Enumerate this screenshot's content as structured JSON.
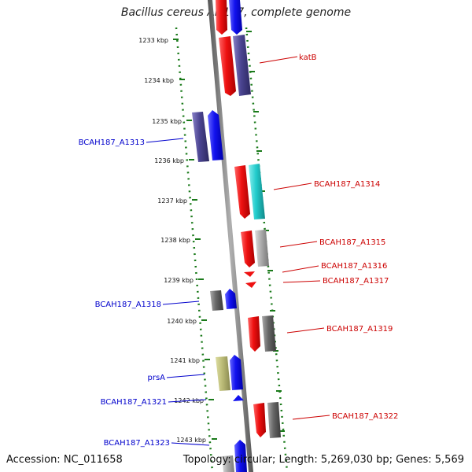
{
  "title": "Bacillus cereus AH187, complete genome",
  "footer": {
    "accession": "Accession: NC_011658",
    "summary": "Topology: circular; Length: 5,269,030 bp; Genes: 5,569"
  },
  "ticks": [
    "1233 kbp",
    "1234 kbp",
    "1235 kbp",
    "1236 kbp",
    "1237 kbp",
    "1238 kbp",
    "1239 kbp",
    "1240 kbp",
    "1241 kbp",
    "1242 kbp",
    "1243 kbp"
  ],
  "genes_right": [
    "katB",
    "BCAH187_A1314",
    "BCAH187_A1315",
    "BCAH187_A1316",
    "BCAH187_A1317",
    "BCAH187_A1319",
    "BCAH187_A1322"
  ],
  "genes_left": [
    "BCAH187_A1313",
    "BCAH187_A1318",
    "prsA",
    "BCAH187_A1321",
    "BCAH187_A1323"
  ],
  "colors": {
    "backbone": "#8a8a8a",
    "forward_label": "#0000cc",
    "reverse_label": "#cc0000",
    "tick_dots": "#1a7a1a",
    "red": "#ee1111",
    "blue": "#1111ee",
    "navy": "#4a4490",
    "cyan": "#22cccc",
    "gray": "#666666",
    "lightgray": "#aaaaaa",
    "khaki": "#bbbb77"
  }
}
